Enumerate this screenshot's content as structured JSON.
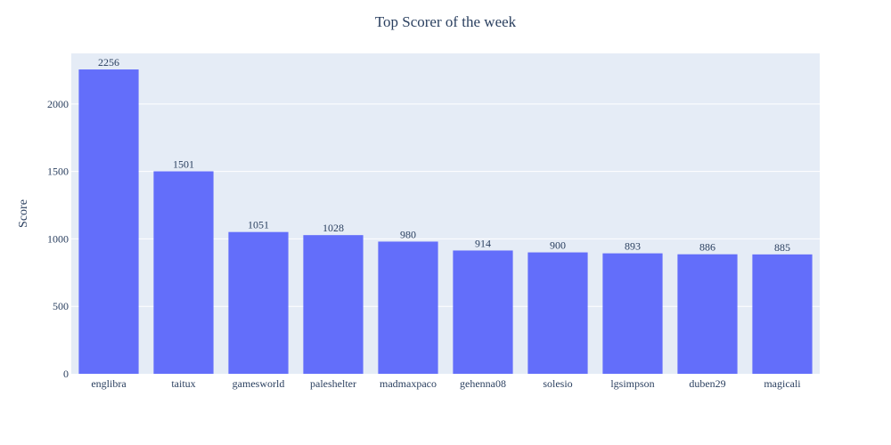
{
  "chart_data": {
    "type": "bar",
    "title": "Top Scorer of the week",
    "xlabel": "",
    "ylabel": "Score",
    "categories": [
      "englibra",
      "taitux",
      "gamesworld",
      "paleshelter",
      "madmaxpaco",
      "gehenna08",
      "solesio",
      "lgsimpson",
      "duben29",
      "magicali"
    ],
    "values": [
      2256,
      1501,
      1051,
      1028,
      980,
      914,
      900,
      893,
      886,
      885
    ],
    "ylim": [
      0,
      2375
    ],
    "yticks": [
      0,
      500,
      1000,
      1500,
      2000
    ],
    "grid": true,
    "legend": "none",
    "data_labels": "outside-top",
    "colors": {
      "bar": "#636efa",
      "plot_background": "#e5ecf6",
      "grid": "#ffffff",
      "text": "#2a3f5f"
    }
  }
}
